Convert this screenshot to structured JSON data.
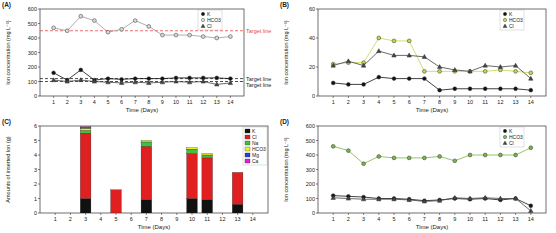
{
  "chart_data": [
    {
      "type": "line",
      "title": "(A)",
      "x_label": "Time (Days)",
      "y_label": "Ion concentration (mg L⁻¹)",
      "x": [
        1,
        2,
        3,
        4,
        5,
        6,
        7,
        8,
        9,
        10,
        11,
        12,
        13,
        14
      ],
      "xlim": [
        0,
        15
      ],
      "xticks": [
        1,
        2,
        3,
        4,
        5,
        6,
        7,
        8,
        9,
        10,
        11,
        12,
        13,
        14
      ],
      "ylim": [
        0,
        600
      ],
      "yticks": [
        0,
        100,
        200,
        300,
        400,
        500,
        600
      ],
      "legend": "top-right",
      "series": [
        {
          "name": "K",
          "color": "#111111",
          "marker": "circle",
          "values": [
            160,
            110,
            180,
            110,
            120,
            115,
            120,
            120,
            120,
            125,
            125,
            125,
            125,
            120
          ]
        },
        {
          "name": "HCO3",
          "color": "#d9d9d9",
          "marker": "circle",
          "values": [
            470,
            450,
            550,
            520,
            440,
            460,
            520,
            480,
            420,
            420,
            420,
            410,
            400,
            410
          ]
        },
        {
          "name": "Cl",
          "color": "#444444",
          "marker": "triangle",
          "values": [
            110,
            100,
            110,
            100,
            95,
            90,
            95,
            90,
            95,
            100,
            95,
            100,
            80,
            90
          ]
        }
      ],
      "annotations": [
        {
          "text": "Target line",
          "y": 450,
          "color": "#e8474a"
        },
        {
          "text": "Target line",
          "y": 120,
          "color": "#222222"
        },
        {
          "text": "Target line",
          "y": 100,
          "color": "#222222"
        }
      ]
    },
    {
      "type": "line",
      "title": "(B)",
      "x_label": "Time (Days)",
      "y_label": "Ion concentration (mg L⁻¹)",
      "x": [
        1,
        2,
        3,
        4,
        5,
        6,
        7,
        8,
        9,
        10,
        11,
        12,
        13,
        14
      ],
      "xlim": [
        0,
        15
      ],
      "xticks": [
        1,
        2,
        3,
        4,
        5,
        6,
        7,
        8,
        9,
        10,
        11,
        12,
        13,
        14
      ],
      "ylim": [
        0,
        60
      ],
      "yticks": [
        0,
        20,
        40,
        60
      ],
      "legend": "top-right",
      "series": [
        {
          "name": "K",
          "color": "#111111",
          "marker": "circle",
          "values": [
            9,
            8,
            8,
            13,
            12,
            12,
            12,
            4,
            5,
            5,
            5,
            5,
            5,
            4
          ]
        },
        {
          "name": "HCO3",
          "color": "#c8d44a",
          "marker": "circle",
          "values": [
            22,
            23,
            23,
            40,
            38,
            38,
            17,
            17,
            17,
            17,
            17,
            18,
            17,
            16
          ]
        },
        {
          "name": "Cl",
          "color": "#444444",
          "marker": "triangle",
          "values": [
            21,
            24,
            21,
            31,
            28,
            28,
            27,
            20,
            18,
            17,
            21,
            20,
            21,
            12
          ]
        }
      ]
    },
    {
      "type": "bar",
      "title": "(C)",
      "x_label": "Time (Days)",
      "y_label": "Amounts of inserted Ion (g)",
      "stacked": true,
      "x": [
        1,
        2,
        3,
        4,
        5,
        6,
        7,
        8,
        9,
        10,
        11,
        12,
        13,
        14
      ],
      "xlim": [
        0,
        15
      ],
      "xticks": [
        1,
        2,
        3,
        4,
        5,
        6,
        7,
        8,
        9,
        10,
        11,
        12,
        13,
        14
      ],
      "ylim": [
        0,
        6
      ],
      "yticks": [
        0,
        1,
        2,
        3,
        4,
        5,
        6
      ],
      "legend": "top-right",
      "series": [
        {
          "name": "K",
          "color": "#111111",
          "values": [
            null,
            null,
            1.0,
            null,
            null,
            null,
            0.9,
            null,
            null,
            1.0,
            0.9,
            null,
            0.6,
            null
          ]
        },
        {
          "name": "Cl",
          "color": "#e02020",
          "values": [
            null,
            null,
            4.5,
            null,
            1.6,
            null,
            3.7,
            null,
            null,
            3.1,
            2.9,
            null,
            2.2,
            null
          ]
        },
        {
          "name": "Na",
          "color": "#40c040",
          "values": [
            null,
            null,
            0.2,
            null,
            null,
            null,
            0.3,
            null,
            null,
            0.3,
            0.2,
            null,
            null,
            null
          ]
        },
        {
          "name": "HCO3",
          "color": "#f0f020",
          "values": [
            null,
            null,
            0.15,
            null,
            null,
            null,
            0.1,
            null,
            null,
            0.1,
            0.1,
            null,
            null,
            null
          ]
        },
        {
          "name": "Mg",
          "color": "#2040e0",
          "values": [
            null,
            null,
            0.05,
            null,
            null,
            null,
            null,
            null,
            null,
            null,
            null,
            null,
            null,
            null
          ]
        },
        {
          "name": "Ca",
          "color": "#e020e0",
          "values": [
            null,
            null,
            0.05,
            null,
            null,
            null,
            null,
            null,
            null,
            null,
            null,
            null,
            null,
            null
          ]
        }
      ]
    },
    {
      "type": "line",
      "title": "(D)",
      "x_label": "Time (Days)",
      "y_label": "Ion concentration (mg L⁻¹)",
      "x": [
        1,
        2,
        3,
        4,
        5,
        6,
        7,
        8,
        9,
        10,
        11,
        12,
        13,
        14
      ],
      "xlim": [
        0,
        15
      ],
      "xticks": [
        1,
        2,
        3,
        4,
        5,
        6,
        7,
        8,
        9,
        10,
        11,
        12,
        13,
        14
      ],
      "ylim": [
        0,
        600
      ],
      "yticks": [
        0,
        100,
        200,
        300,
        400,
        500,
        600
      ],
      "legend": "top-right",
      "series": [
        {
          "name": "K",
          "color": "#111111",
          "marker": "circle",
          "values": [
            120,
            115,
            110,
            100,
            100,
            95,
            85,
            90,
            100,
            95,
            100,
            90,
            100,
            50
          ]
        },
        {
          "name": "HCO3",
          "color": "#7ab648",
          "marker": "circle",
          "values": [
            460,
            430,
            340,
            390,
            380,
            380,
            380,
            390,
            360,
            400,
            400,
            400,
            400,
            450
          ]
        },
        {
          "name": "Cl",
          "color": "#444444",
          "marker": "triangle",
          "values": [
            105,
            100,
            95,
            95,
            95,
            90,
            80,
            85,
            105,
            100,
            105,
            100,
            100,
            15
          ]
        }
      ]
    }
  ]
}
